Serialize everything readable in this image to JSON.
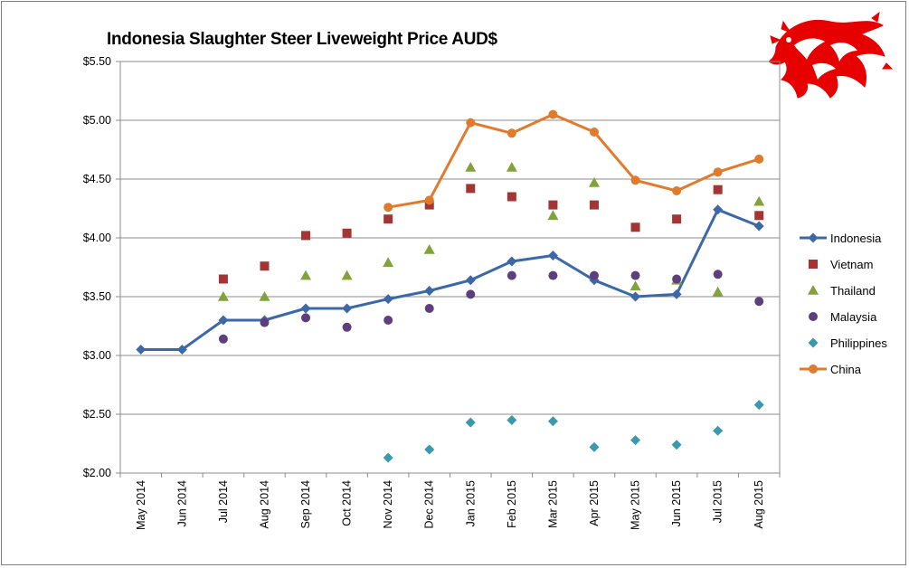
{
  "chart_data": {
    "type": "line",
    "title": "Indonesia Slaughter Steer Liveweight Price AUD$",
    "xlabel": "",
    "ylabel": "",
    "ylim": [
      2.0,
      5.5
    ],
    "yticks": [
      "$2.00",
      "$2.50",
      "$3.00",
      "$3.50",
      "$4.00",
      "$4.50",
      "$5.00",
      "$5.50"
    ],
    "ytick_values": [
      2.0,
      2.5,
      3.0,
      3.5,
      4.0,
      4.5,
      5.0,
      5.5
    ],
    "categories": [
      "May 2014",
      "Jun 2014",
      "Jul 2014",
      "Aug 2014",
      "Sep 2014",
      "Oct 2014",
      "Nov 2014",
      "Dec 2014",
      "Jan 2015",
      "Feb 2015",
      "Mar 2015",
      "Apr 2015",
      "May 2015",
      "Jun 2015",
      "Jul 2015",
      "Aug 2015"
    ],
    "grid": "horizontal",
    "legend_position": "right",
    "series": [
      {
        "name": "Indonesia",
        "marker": "diamond",
        "line": true,
        "color": "#3d68a6",
        "values": [
          3.05,
          3.05,
          3.3,
          3.3,
          3.4,
          3.4,
          3.48,
          3.55,
          3.64,
          3.8,
          3.85,
          3.64,
          3.5,
          3.52,
          4.24,
          4.1
        ]
      },
      {
        "name": "Vietnam",
        "marker": "square",
        "line": false,
        "color": "#a33634",
        "values": [
          null,
          null,
          3.65,
          3.76,
          4.02,
          4.04,
          4.16,
          4.28,
          4.42,
          4.35,
          4.28,
          4.28,
          4.09,
          4.16,
          4.41,
          4.19
        ]
      },
      {
        "name": "Thailand",
        "marker": "triangle",
        "line": false,
        "color": "#82a23c",
        "values": [
          null,
          null,
          3.5,
          3.5,
          3.68,
          3.68,
          3.79,
          3.9,
          4.6,
          4.6,
          4.19,
          4.47,
          3.59,
          3.64,
          3.54,
          4.31
        ]
      },
      {
        "name": "Malaysia",
        "marker": "circle",
        "line": false,
        "color": "#5d3f7d",
        "values": [
          null,
          null,
          3.14,
          3.28,
          3.32,
          3.24,
          3.3,
          3.4,
          3.52,
          3.68,
          3.68,
          3.68,
          3.68,
          3.65,
          3.69,
          3.46
        ]
      },
      {
        "name": "Philippines",
        "marker": "diamond",
        "line": false,
        "color": "#3a99ad",
        "values": [
          null,
          null,
          null,
          null,
          null,
          null,
          2.13,
          2.2,
          2.43,
          2.45,
          2.44,
          2.22,
          2.28,
          2.24,
          2.36,
          2.58
        ]
      },
      {
        "name": "China",
        "marker": "circle",
        "line": true,
        "color": "#e07a2d",
        "values": [
          null,
          null,
          null,
          null,
          null,
          null,
          4.26,
          4.32,
          4.98,
          4.89,
          5.05,
          4.9,
          4.49,
          4.4,
          4.56,
          4.67
        ]
      }
    ]
  },
  "logo": {
    "name": "dragon-logo",
    "color": "#e60000"
  }
}
